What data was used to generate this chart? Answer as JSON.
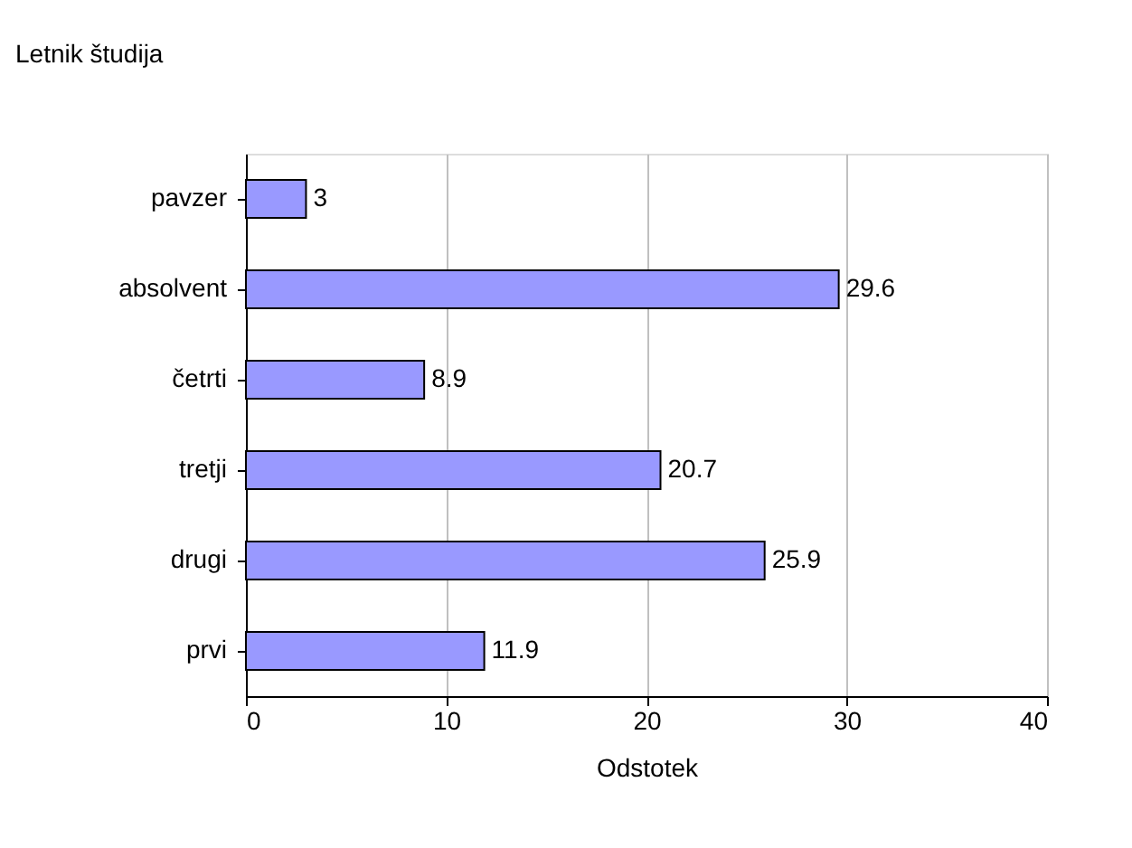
{
  "chart_data": {
    "type": "bar",
    "orientation": "horizontal",
    "ylabel": "Letnik študija",
    "xlabel": "Odstotek",
    "categories": [
      "pavzer",
      "absolvent",
      "četrti",
      "tretji",
      "drugi",
      "prvi"
    ],
    "values": [
      3,
      29.6,
      8.9,
      20.7,
      25.9,
      11.9
    ],
    "color": "#9999ff",
    "xlim": [
      0,
      40
    ],
    "xticks": [
      0,
      10,
      20,
      30,
      40
    ],
    "grid": "x",
    "data_labels": true
  }
}
